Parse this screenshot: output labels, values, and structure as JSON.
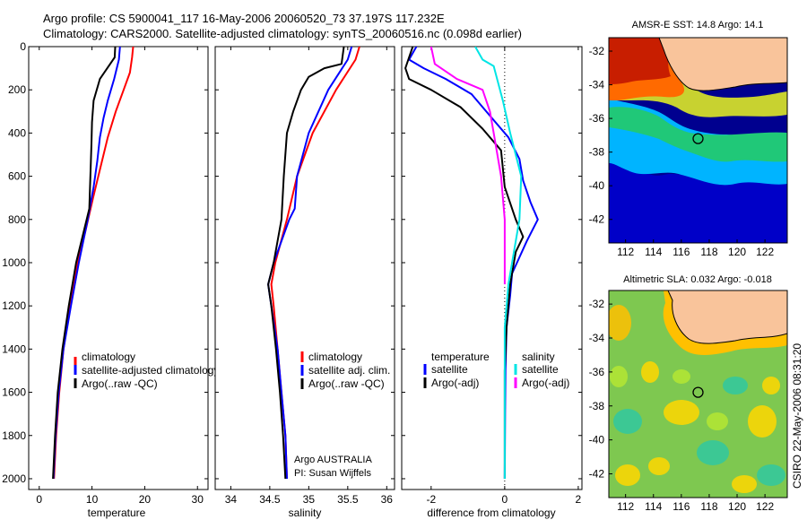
{
  "header": {
    "line1": "Argo profile: CS 5900041_117 16-May-2006 20060520_73 37.197S 117.232E",
    "line2": "Climatology: CARS2000. Satellite-adjusted climatology: synTS_20060516.nc (0.098d earlier)"
  },
  "colors": {
    "climatology": "#ff0000",
    "satellite": "#0000ff",
    "argo": "#000000",
    "sat_sal": "#00e5e5",
    "argo_sal": "#ff00ff",
    "land": "#f9c49b"
  },
  "chart_data": [
    {
      "type": "line",
      "title": "",
      "xlabel": "temperature",
      "ylabel": "",
      "xlim": [
        -2,
        32
      ],
      "ylim": [
        2050,
        0
      ],
      "xticks": [
        0,
        10,
        20,
        30
      ],
      "yticks": [
        0,
        200,
        400,
        600,
        800,
        1000,
        1200,
        1400,
        1600,
        1800,
        2000
      ],
      "legend": [
        "climatology",
        "satellite-adjusted climatology",
        "Argo(..raw -QC)"
      ],
      "series": [
        {
          "name": "climatology",
          "color": "#ff0000",
          "points": [
            [
              17.8,
              0
            ],
            [
              17.6,
              50
            ],
            [
              17.2,
              120
            ],
            [
              16.0,
              200
            ],
            [
              14.5,
              300
            ],
            [
              13.0,
              420
            ],
            [
              11.6,
              560
            ],
            [
              10.2,
              700
            ],
            [
              8.8,
              850
            ],
            [
              7.3,
              1000
            ],
            [
              5.8,
              1200
            ],
            [
              4.6,
              1400
            ],
            [
              3.8,
              1600
            ],
            [
              3.2,
              1800
            ],
            [
              2.8,
              2000
            ]
          ]
        },
        {
          "name": "satellite-adjusted climatology",
          "color": "#0000ff",
          "points": [
            [
              15.3,
              0
            ],
            [
              15.1,
              60
            ],
            [
              14.2,
              150
            ],
            [
              13.0,
              250
            ],
            [
              12.2,
              330
            ],
            [
              11.5,
              420
            ],
            [
              11.0,
              530
            ],
            [
              10.3,
              650
            ],
            [
              9.2,
              800
            ],
            [
              7.5,
              1000
            ],
            [
              6.0,
              1200
            ],
            [
              4.6,
              1400
            ],
            [
              3.7,
              1600
            ],
            [
              3.1,
              1800
            ],
            [
              2.7,
              2000
            ]
          ]
        },
        {
          "name": "Argo(..raw -QC)",
          "color": "#000000",
          "points": [
            [
              14.4,
              0
            ],
            [
              14.3,
              50
            ],
            [
              11.5,
              150
            ],
            [
              10.3,
              250
            ],
            [
              10.0,
              350
            ],
            [
              9.9,
              450
            ],
            [
              9.7,
              600
            ],
            [
              9.5,
              750
            ],
            [
              8.0,
              900
            ],
            [
              7.0,
              1000
            ],
            [
              5.6,
              1200
            ],
            [
              4.4,
              1400
            ],
            [
              3.5,
              1600
            ],
            [
              3.0,
              1800
            ],
            [
              2.6,
              2000
            ]
          ]
        }
      ]
    },
    {
      "type": "line",
      "title": "",
      "xlabel": "salinity",
      "ylabel": "",
      "xlim": [
        33.8,
        36.1
      ],
      "ylim": [
        2050,
        0
      ],
      "xticks": [
        34,
        34.5,
        35,
        35.5,
        36
      ],
      "legend": [
        "climatology",
        "satellite adj. clim.",
        "Argo(..raw -QC)"
      ],
      "series": [
        {
          "name": "climatology",
          "color": "#ff0000",
          "points": [
            [
              35.65,
              0
            ],
            [
              35.6,
              60
            ],
            [
              35.35,
              200
            ],
            [
              35.05,
              400
            ],
            [
              34.85,
              600
            ],
            [
              34.72,
              800
            ],
            [
              34.57,
              1000
            ],
            [
              34.52,
              1100
            ],
            [
              34.55,
              1200
            ],
            [
              34.6,
              1400
            ],
            [
              34.65,
              1600
            ],
            [
              34.7,
              1800
            ],
            [
              34.72,
              2000
            ]
          ]
        },
        {
          "name": "satellite adj. clim.",
          "color": "#0000ff",
          "points": [
            [
              35.55,
              0
            ],
            [
              35.5,
              60
            ],
            [
              35.25,
              200
            ],
            [
              35.0,
              400
            ],
            [
              34.85,
              600
            ],
            [
              34.82,
              750
            ],
            [
              34.75,
              800
            ],
            [
              34.55,
              1000
            ],
            [
              34.48,
              1100
            ],
            [
              34.52,
              1200
            ],
            [
              34.6,
              1400
            ],
            [
              34.65,
              1600
            ],
            [
              34.7,
              1800
            ],
            [
              34.72,
              2000
            ]
          ]
        },
        {
          "name": "Argo(..raw -QC)",
          "color": "#000000",
          "points": [
            [
              35.45,
              0
            ],
            [
              35.42,
              80
            ],
            [
              35.2,
              100
            ],
            [
              35.0,
              140
            ],
            [
              34.9,
              200
            ],
            [
              34.8,
              300
            ],
            [
              34.72,
              400
            ],
            [
              34.68,
              600
            ],
            [
              34.65,
              800
            ],
            [
              34.55,
              1000
            ],
            [
              34.48,
              1100
            ],
            [
              34.52,
              1200
            ],
            [
              34.58,
              1400
            ],
            [
              34.63,
              1600
            ],
            [
              34.67,
              1800
            ],
            [
              34.7,
              2000
            ]
          ]
        }
      ],
      "annotation": {
        "line1": "Argo AUSTRALIA",
        "line2": "PI: Susan Wijffels"
      }
    },
    {
      "type": "line",
      "title": "",
      "xlabel": "difference from climatology",
      "ylabel": "",
      "xlim": [
        -2.8,
        2.1
      ],
      "ylim": [
        2050,
        0
      ],
      "xticks": [
        -2,
        0,
        2
      ],
      "legend_groups": [
        {
          "title": "temperature",
          "items": [
            "satellite",
            "Argo(-adj)"
          ]
        },
        {
          "title": "salinity",
          "items": [
            "satellite",
            "Argo(-adj)"
          ]
        }
      ],
      "series": [
        {
          "name": "temperature satellite",
          "color": "#0000ff",
          "points": [
            [
              -2.4,
              0
            ],
            [
              -2.6,
              60
            ],
            [
              -2.2,
              100
            ],
            [
              -1.6,
              150
            ],
            [
              -0.9,
              220
            ],
            [
              -0.4,
              320
            ],
            [
              0.1,
              420
            ],
            [
              0.4,
              520
            ],
            [
              0.5,
              620
            ],
            [
              0.7,
              720
            ],
            [
              0.9,
              800
            ],
            [
              0.6,
              900
            ],
            [
              0.2,
              1050
            ],
            [
              0.15,
              1150
            ],
            [
              0.05,
              1300
            ],
            [
              0.02,
              1500
            ],
            [
              0.01,
              1700
            ],
            [
              0,
              2000
            ]
          ]
        },
        {
          "name": "temperature Argo(-adj)",
          "color": "#000000",
          "points": [
            [
              -2.5,
              0
            ],
            [
              -2.7,
              100
            ],
            [
              -2.6,
              150
            ],
            [
              -2.0,
              200
            ],
            [
              -1.2,
              280
            ],
            [
              -0.6,
              380
            ],
            [
              -0.1,
              480
            ],
            [
              0,
              650
            ],
            [
              0.3,
              800
            ],
            [
              0.5,
              880
            ],
            [
              0.3,
              950
            ],
            [
              0.15,
              1100
            ],
            [
              0.05,
              1300
            ],
            [
              0,
              1500
            ],
            [
              0,
              2000
            ]
          ]
        },
        {
          "name": "salinity satellite",
          "color": "#00e5e5",
          "points": [
            [
              -0.8,
              0
            ],
            [
              -0.6,
              60
            ],
            [
              -0.3,
              90
            ],
            [
              -0.05,
              250
            ],
            [
              0.15,
              400
            ],
            [
              0.45,
              600
            ],
            [
              0.4,
              800
            ],
            [
              0.3,
              900
            ],
            [
              0.1,
              1100
            ],
            [
              0,
              1300
            ],
            [
              0,
              1500
            ],
            [
              0,
              2000
            ]
          ]
        },
        {
          "name": "salinity Argo(-adj)",
          "color": "#ff00ff",
          "points": [
            [
              -2,
              0
            ],
            [
              -1.9,
              80
            ],
            [
              -1.3,
              150
            ],
            [
              -0.6,
              200
            ],
            [
              -0.4,
              300
            ],
            [
              -0.3,
              400
            ],
            [
              -0.1,
              600
            ],
            [
              0,
              800
            ],
            [
              0,
              1000
            ],
            [
              0,
              1100
            ]
          ]
        }
      ]
    }
  ],
  "maps": [
    {
      "title": "AMSR-E SST: 14.8 Argo: 14.1",
      "lon_ticks": [
        "112",
        "114",
        "116",
        "118",
        "120",
        "122"
      ],
      "lat_ticks": [
        "-32",
        "-34",
        "-36",
        "-38",
        "-40",
        "-42"
      ],
      "float_lon": 117.2,
      "float_lat": -37.2
    },
    {
      "title": "Altimetric SLA: 0.032 Argo: -0.018",
      "lon_ticks": [
        "112",
        "114",
        "116",
        "118",
        "120",
        "122"
      ],
      "lat_ticks": [
        "-32",
        "-34",
        "-36",
        "-38",
        "-40",
        "-42"
      ],
      "float_lon": 117.2,
      "float_lat": -37.2
    }
  ],
  "footer": {
    "credit": "CSIRO 22-May-2006 08:31:20"
  }
}
